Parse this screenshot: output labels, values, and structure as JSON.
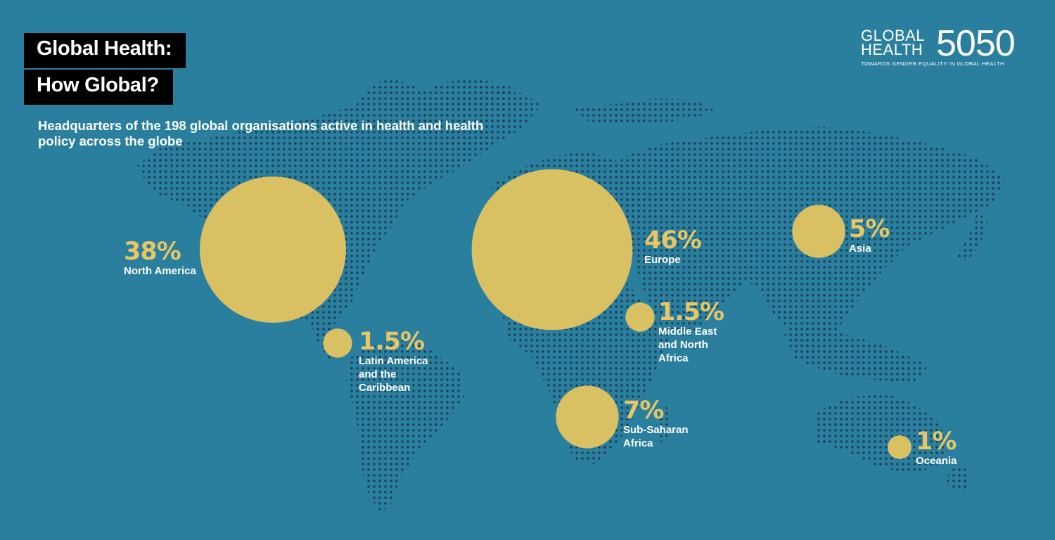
{
  "title_line1": "Global Health:",
  "title_line2": "How Global?",
  "subtitle": "Headquarters of the 198 global organisations active in health and health policy across the globe",
  "logo": {
    "line1": "GLOBAL",
    "line2": "HEALTH",
    "number": "5050",
    "tagline": "TOWARDS GENDER EQUALITY IN GLOBAL HEALTH"
  },
  "colors": {
    "background": "#2a7f9e",
    "bubble": "#d8c063",
    "percent": "#e8c663",
    "map_dots": "#1b3d55"
  },
  "regions": [
    {
      "id": "north-america",
      "percent_value": 38,
      "percent": "38%",
      "name": "North America"
    },
    {
      "id": "latin-america",
      "percent_value": 1.5,
      "percent": "1.5%",
      "name": "Latin America\nand the\nCaribbean"
    },
    {
      "id": "europe",
      "percent_value": 46,
      "percent": "46%",
      "name": "Europe"
    },
    {
      "id": "middle-east",
      "percent_value": 1.5,
      "percent": "1.5%",
      "name": "Middle East\nand North\nAfrica"
    },
    {
      "id": "sub-saharan",
      "percent_value": 7,
      "percent": "7%",
      "name": "Sub-Saharan\nAfrica"
    },
    {
      "id": "asia",
      "percent_value": 5,
      "percent": "5%",
      "name": "Asia"
    },
    {
      "id": "oceania",
      "percent_value": 1,
      "percent": "1%",
      "name": "Oceania"
    }
  ]
}
